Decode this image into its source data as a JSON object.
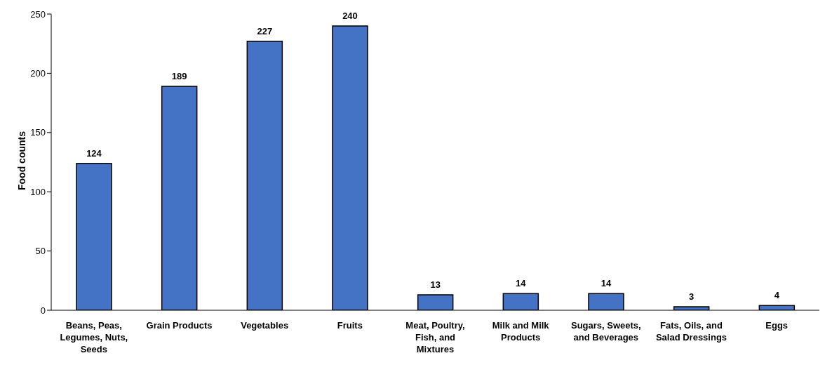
{
  "chart_data": {
    "type": "bar",
    "ylabel": "Food counts",
    "categories": [
      "Beans, Peas, Legumes, Nuts, Seeds",
      "Grain Products",
      "Vegetables",
      "Fruits",
      "Meat, Poultry, Fish, and Mixtures",
      "Milk and Milk Products",
      "Sugars, Sweets, and Beverages",
      "Fats, Oils, and Salad Dressings",
      "Eggs"
    ],
    "values": [
      124,
      189,
      227,
      240,
      13,
      14,
      14,
      3,
      4
    ],
    "color": "#4472c4",
    "ylim": [
      0,
      250
    ],
    "yticks": [
      0,
      50,
      100,
      150,
      200,
      250
    ],
    "grid": false,
    "legend": false,
    "data_labels": true
  }
}
